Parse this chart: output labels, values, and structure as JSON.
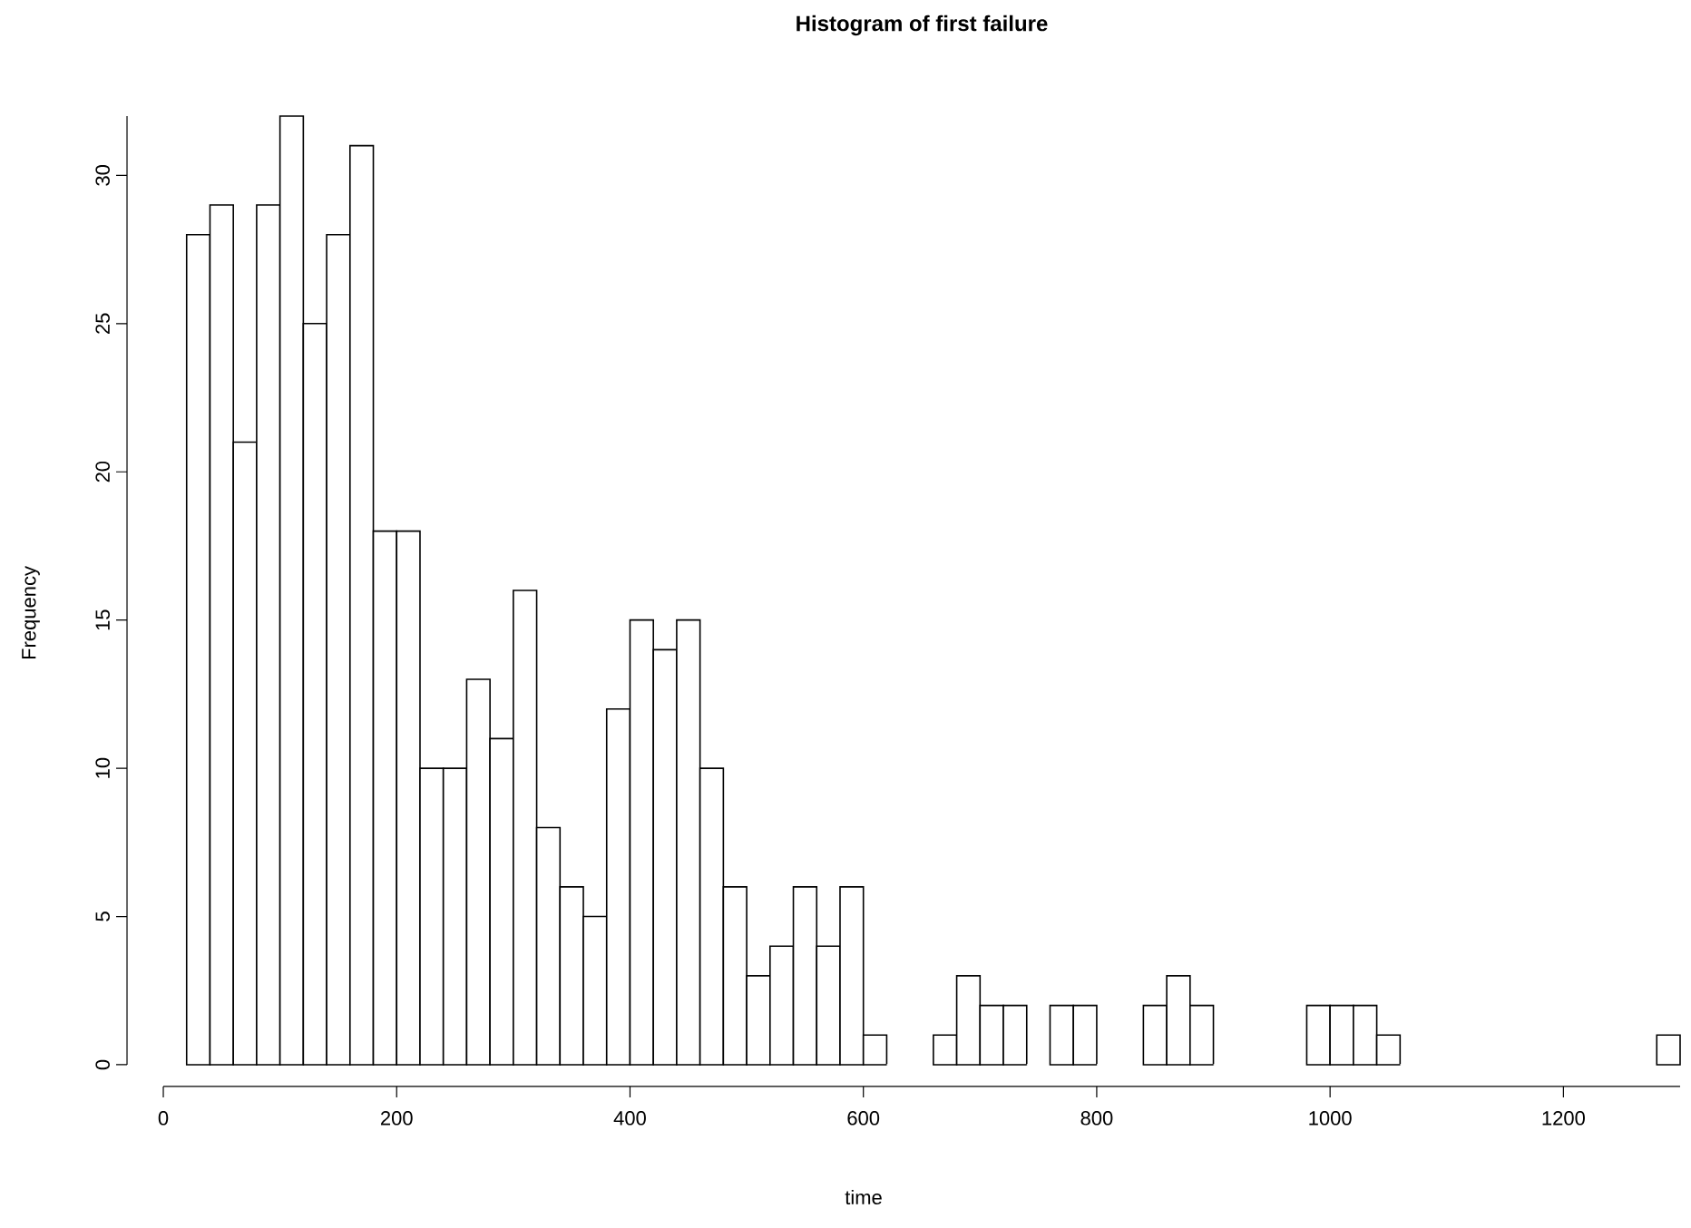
{
  "chart_data": {
    "type": "histogram",
    "title": "Histogram of first failure",
    "xlabel": "time",
    "ylabel": "Frequency",
    "bins": [
      20,
      40,
      60,
      80,
      100,
      120,
      140,
      160,
      180,
      200,
      220,
      240,
      260,
      280,
      300,
      320,
      340,
      360,
      380,
      400,
      420,
      440,
      460,
      480,
      500,
      520,
      540,
      560,
      580,
      600,
      620,
      640,
      660,
      680,
      700,
      720,
      740,
      760,
      780,
      800,
      820,
      840,
      860,
      880,
      900,
      920,
      940,
      960,
      980,
      1000,
      1020,
      1040,
      1060,
      1080,
      1100,
      1120,
      1140,
      1160,
      1180,
      1200,
      1220,
      1240,
      1260,
      1280,
      1300
    ],
    "values": [
      28,
      29,
      21,
      29,
      32,
      25,
      28,
      31,
      18,
      18,
      10,
      10,
      13,
      11,
      16,
      8,
      6,
      5,
      12,
      15,
      14,
      15,
      10,
      6,
      3,
      4,
      6,
      4,
      6,
      1,
      0,
      0,
      1,
      3,
      2,
      2,
      0,
      2,
      2,
      0,
      0,
      2,
      3,
      2,
      0,
      0,
      0,
      0,
      2,
      2,
      2,
      1,
      0,
      0,
      0,
      0,
      0,
      0,
      0,
      0,
      0,
      0,
      0,
      1
    ],
    "color": "#ffffff",
    "xlim": [
      0,
      1300
    ],
    "ylim": [
      0,
      32
    ],
    "xticks": [
      0,
      200,
      400,
      600,
      800,
      1000,
      1200
    ],
    "yticks": [
      0,
      5,
      10,
      15,
      20,
      25,
      30
    ]
  }
}
